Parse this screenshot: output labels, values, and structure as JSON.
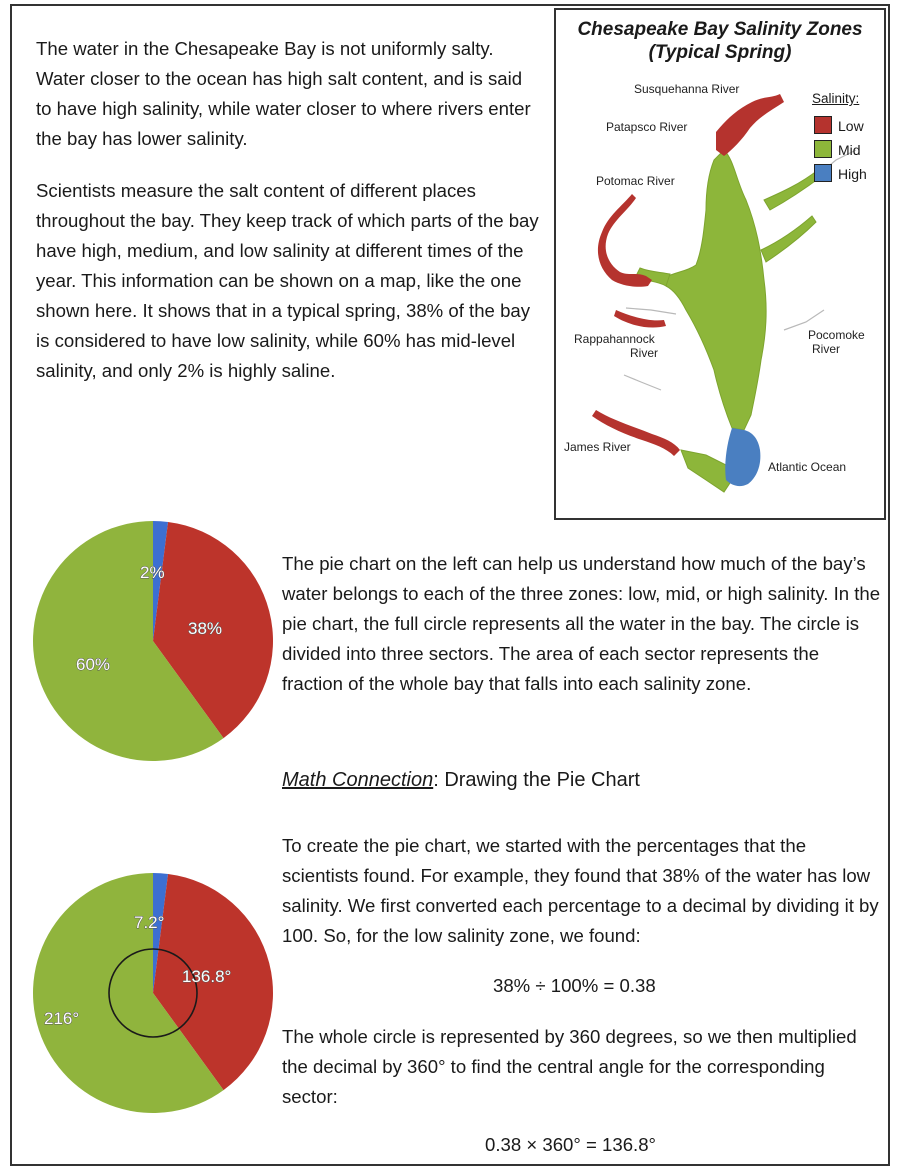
{
  "intro": {
    "p1": "The water in the Chesapeake Bay is not uniformly salty. Water closer to the ocean has high salt content, and is said to have high salinity, while water closer to where rivers enter the bay has lower salinity.",
    "p2": "Scientists measure the salt content of different places throughout the bay. They keep track of which parts of the bay have high, medium, and low salinity at different times of the year. This information can be shown on a map, like the one shown here. It shows that in a typical spring, 38% of the bay is considered to have low salinity, while 60% has mid-level salinity, and only 2% is highly saline."
  },
  "map": {
    "title_line1": "Chesapeake Bay Salinity Zones",
    "title_line2": "(Typical Spring)",
    "labels": {
      "susquehanna": "Susquehanna River",
      "patapsco": "Patapsco River",
      "potomac": "Potomac River",
      "rappahannock1": "Rappahannock",
      "rappahannock2": "River",
      "pocomoke1": "Pocomoke",
      "pocomoke2": "River",
      "james": "James River",
      "atlantic": "Atlantic Ocean"
    },
    "legend": {
      "title": "Salinity:",
      "low": "Low",
      "mid": "Mid",
      "high": "High"
    },
    "colors": {
      "low": "#b5332e",
      "mid": "#8db63a",
      "high": "#4a7fc1"
    }
  },
  "chart_data": [
    {
      "type": "pie",
      "labels": [
        "2%",
        "38%",
        "60%"
      ],
      "values": [
        2,
        38,
        60
      ],
      "colors": [
        "#3d6fd1",
        "#bd342b",
        "#90b43d"
      ]
    },
    {
      "type": "pie",
      "labels": [
        "7.2°",
        "136.8°",
        "216°"
      ],
      "values": [
        7.2,
        136.8,
        216
      ],
      "colors": [
        "#3d6fd1",
        "#bd342b",
        "#90b43d"
      ]
    }
  ],
  "pie_text": {
    "p3": "The pie chart on the left can help us understand how much of the bay’s water belongs to each of the three zones: low, mid, or high salinity. In the pie chart, the full circle represents all the water in the bay. The circle is divided into three sectors. The area of each sector represents the fraction of the whole bay that falls into each salinity zone."
  },
  "math": {
    "heading_underlined": "Math Connection",
    "heading_rest": ": Drawing the Pie Chart",
    "p4": "To create the pie chart, we started with the percentages that the scientists found. For example, they found that 38% of the water has low salinity. We first converted each percentage to a decimal by dividing it by 100. So, for the low salinity zone, we found:",
    "eq1": "38% ÷ 100% = 0.38",
    "p5": "The whole circle is represented by 360 degrees, so we then multiplied the decimal by 360° to find the central angle for the corresponding sector:",
    "eq2": "0.38 × 360° = 136.8°"
  }
}
